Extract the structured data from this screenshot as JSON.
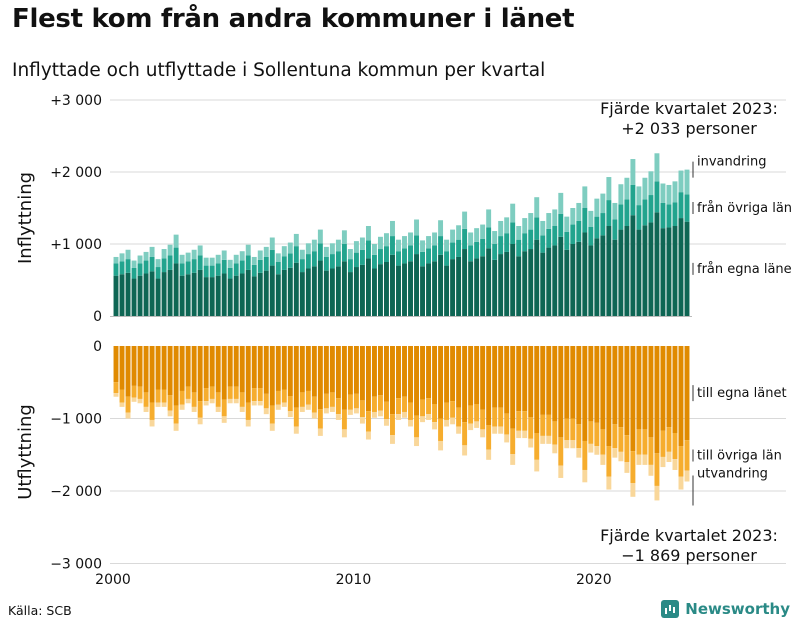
{
  "title": "Flest kom från andra kommuner i länet",
  "subtitle": "Inflyttade och utflyttade i Sollentuna kommun per kvartal",
  "source": "Källa: SCB",
  "brand": "Newsworthy",
  "colors": {
    "in_own": "#0e6654",
    "in_other": "#22a48e",
    "in_abroad": "#7ecdc0",
    "out_own": "#e08a00",
    "out_other": "#f6ad2e",
    "out_abroad": "#f9d79a",
    "grid": "#d9d9d9",
    "text": "#111111"
  },
  "chart_data": {
    "type": "stacked-bar",
    "start_year": 2000,
    "quarters": 96,
    "y_ticks": [
      {
        "value": 3000,
        "label": "+3 000"
      },
      {
        "value": 2000,
        "label": "+2 000"
      },
      {
        "value": 1000,
        "label": "+1 000"
      },
      {
        "value": 0,
        "label": "0"
      },
      {
        "value": -1000,
        "label": "−1 000"
      },
      {
        "value": -2000,
        "label": "−2 000"
      },
      {
        "value": -3000,
        "label": "−3 000"
      }
    ],
    "x_ticks": [
      {
        "value": 2000,
        "label": "2000"
      },
      {
        "value": 2010,
        "label": "2010"
      },
      {
        "value": 2020,
        "label": "2020"
      }
    ],
    "ylabel_in": "Inflyttning",
    "ylabel_out": "Utflyttning",
    "annotation_in": "Fjärde kvartalet 2023:\n+2 033 personer",
    "annotation_out": "Fjärde kvartalet 2023:\n−1 869 personer",
    "series_in": [
      {
        "name": "från egna läne",
        "key": "in_own"
      },
      {
        "name": "från övriga län",
        "key": "in_other"
      },
      {
        "name": "invandring",
        "key": "in_abroad"
      }
    ],
    "series_out": [
      {
        "name": "till egna länet",
        "key": "out_own"
      },
      {
        "name": "till övriga län",
        "key": "out_other"
      },
      {
        "name": "utvandring",
        "key": "out_abroad"
      }
    ],
    "in_own": [
      560,
      580,
      600,
      520,
      560,
      590,
      620,
      520,
      610,
      640,
      730,
      560,
      580,
      600,
      640,
      540,
      540,
      560,
      590,
      520,
      560,
      590,
      640,
      550,
      600,
      630,
      700,
      580,
      640,
      670,
      740,
      610,
      660,
      690,
      770,
      630,
      660,
      690,
      760,
      610,
      680,
      710,
      800,
      660,
      720,
      750,
      850,
      700,
      730,
      760,
      860,
      690,
      730,
      760,
      850,
      700,
      790,
      820,
      930,
      760,
      800,
      830,
      940,
      780,
      860,
      890,
      1000,
      830,
      900,
      930,
      1060,
      880,
      950,
      980,
      1100,
      920,
      1000,
      1030,
      1160,
      980,
      1080,
      1120,
      1250,
      1060,
      1200,
      1250,
      1400,
      1200,
      1260,
      1300,
      1440,
      1220,
      1230,
      1250,
      1360,
      1310
    ],
    "in_other": [
      170,
      180,
      190,
      150,
      170,
      180,
      200,
      160,
      190,
      200,
      220,
      170,
      180,
      190,
      200,
      160,
      160,
      170,
      190,
      150,
      170,
      180,
      200,
      160,
      180,
      190,
      220,
      170,
      190,
      200,
      230,
      180,
      200,
      210,
      240,
      190,
      200,
      210,
      240,
      180,
      200,
      210,
      250,
      190,
      210,
      220,
      260,
      200,
      210,
      220,
      260,
      200,
      210,
      220,
      260,
      200,
      230,
      240,
      280,
      220,
      230,
      240,
      290,
      220,
      250,
      260,
      300,
      230,
      250,
      270,
      310,
      240,
      260,
      270,
      320,
      250,
      270,
      290,
      340,
      260,
      300,
      310,
      360,
      280,
      350,
      370,
      420,
      340,
      360,
      380,
      430,
      350,
      320,
      330,
      360,
      380
    ],
    "in_abroad": [
      90,
      110,
      130,
      100,
      110,
      120,
      140,
      110,
      130,
      150,
      180,
      120,
      120,
      130,
      140,
      110,
      110,
      120,
      130,
      110,
      120,
      130,
      150,
      110,
      130,
      140,
      170,
      120,
      140,
      150,
      170,
      130,
      150,
      160,
      190,
      140,
      150,
      160,
      190,
      140,
      160,
      170,
      200,
      150,
      170,
      180,
      210,
      160,
      170,
      180,
      220,
      160,
      170,
      180,
      220,
      160,
      180,
      200,
      240,
      180,
      190,
      200,
      250,
      180,
      210,
      220,
      260,
      190,
      210,
      230,
      280,
      200,
      220,
      230,
      290,
      210,
      230,
      250,
      300,
      220,
      250,
      270,
      320,
      230,
      280,
      300,
      360,
      260,
      300,
      330,
      390,
      270,
      270,
      290,
      300,
      343
    ],
    "out_own": [
      500,
      600,
      700,
      550,
      560,
      640,
      780,
      600,
      600,
      680,
      820,
      620,
      560,
      640,
      760,
      580,
      560,
      640,
      740,
      560,
      560,
      640,
      780,
      580,
      580,
      660,
      820,
      620,
      600,
      690,
      850,
      640,
      620,
      700,
      870,
      660,
      640,
      720,
      880,
      670,
      660,
      750,
      900,
      700,
      680,
      770,
      940,
      720,
      700,
      780,
      960,
      740,
      720,
      800,
      1000,
      780,
      760,
      850,
      1050,
      820,
      800,
      880,
      1090,
      850,
      850,
      930,
      1140,
      900,
      900,
      980,
      1200,
      950,
      950,
      1040,
      1260,
      1000,
      1000,
      1080,
      1310,
      1040,
      1060,
      1150,
      1380,
      1080,
      1120,
      1230,
      1450,
      1150,
      1150,
      1260,
      1480,
      1170,
      1120,
      1200,
      1380,
      1300
    ],
    "out_other": [
      150,
      180,
      220,
      160,
      170,
      200,
      240,
      180,
      180,
      210,
      250,
      190,
      170,
      200,
      230,
      180,
      170,
      200,
      230,
      170,
      170,
      200,
      240,
      180,
      180,
      200,
      250,
      190,
      180,
      210,
      260,
      200,
      190,
      220,
      270,
      200,
      200,
      220,
      270,
      210,
      200,
      230,
      280,
      210,
      210,
      240,
      290,
      220,
      210,
      240,
      300,
      230,
      220,
      250,
      310,
      240,
      230,
      260,
      320,
      250,
      240,
      270,
      340,
      260,
      260,
      290,
      350,
      270,
      270,
      300,
      370,
      290,
      290,
      320,
      390,
      300,
      300,
      330,
      400,
      310,
      320,
      350,
      420,
      330,
      340,
      370,
      440,
      350,
      350,
      380,
      450,
      360,
      340,
      360,
      420,
      420
    ],
    "out_abroad": [
      50,
      60,
      80,
      60,
      60,
      70,
      90,
      60,
      60,
      80,
      100,
      70,
      60,
      70,
      90,
      60,
      60,
      70,
      90,
      60,
      60,
      70,
      90,
      60,
      60,
      80,
      100,
      70,
      60,
      80,
      100,
      70,
      70,
      80,
      100,
      70,
      70,
      80,
      110,
      70,
      70,
      90,
      110,
      80,
      80,
      90,
      120,
      80,
      80,
      90,
      120,
      80,
      80,
      100,
      130,
      90,
      90,
      100,
      140,
      90,
      90,
      110,
      140,
      100,
      100,
      110,
      150,
      100,
      100,
      120,
      160,
      110,
      110,
      120,
      170,
      110,
      110,
      130,
      170,
      120,
      120,
      140,
      180,
      130,
      130,
      150,
      190,
      140,
      140,
      150,
      200,
      140,
      140,
      150,
      180,
      149
    ]
  }
}
